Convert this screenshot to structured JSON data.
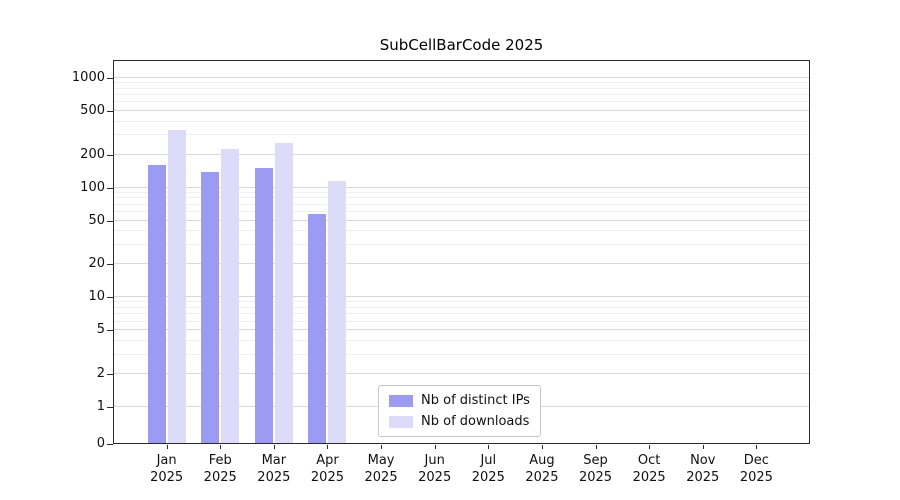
{
  "chart_data": {
    "type": "bar",
    "title": "SubCellBarCode 2025",
    "year": "2025",
    "categories": [
      "Jan",
      "Feb",
      "Mar",
      "Apr",
      "May",
      "Jun",
      "Jul",
      "Aug",
      "Sep",
      "Oct",
      "Nov",
      "Dec"
    ],
    "series": [
      {
        "name": "Nb of distinct IPs",
        "color": "#9b9bf2",
        "values": [
          160,
          140,
          150,
          58,
          0,
          0,
          0,
          0,
          0,
          0,
          0,
          0
        ]
      },
      {
        "name": "Nb of downloads",
        "color": "#dcdcfa",
        "values": [
          335,
          225,
          255,
          115,
          0,
          0,
          0,
          0,
          0,
          0,
          0,
          0
        ]
      }
    ],
    "yticks": [
      0,
      1,
      2,
      5,
      10,
      20,
      50,
      100,
      200,
      500,
      1000
    ],
    "yscale": "symlog",
    "ylim": [
      0,
      1300
    ],
    "grid": true,
    "legend_position": "lower-center-inside"
  }
}
